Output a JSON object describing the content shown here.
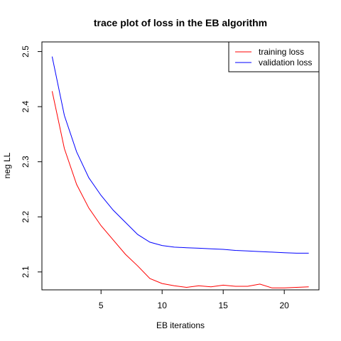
{
  "chart_data": {
    "type": "line",
    "title": "trace plot of loss in the EB algorithm",
    "xlabel": "EB iterations",
    "ylabel": "neg LL",
    "xlim": [
      0.16,
      22.84
    ],
    "ylim": [
      2.0675,
      2.5175
    ],
    "xticks": [
      "5",
      "10",
      "15",
      "20"
    ],
    "yticks": [
      "2.1",
      "2.2",
      "2.3",
      "2.4",
      "2.5"
    ],
    "grid": false,
    "legend_position": "top-right",
    "x": [
      1,
      2,
      3,
      4,
      5,
      6,
      7,
      8,
      9,
      10,
      11,
      12,
      13,
      14,
      15,
      16,
      17,
      18,
      19,
      20,
      21,
      22
    ],
    "series": [
      {
        "name": "training loss",
        "color": "#ff0000",
        "values": [
          2.428,
          2.324,
          2.259,
          2.216,
          2.184,
          2.158,
          2.132,
          2.111,
          2.088,
          2.079,
          2.075,
          2.072,
          2.075,
          2.073,
          2.076,
          2.074,
          2.074,
          2.078,
          2.071,
          2.071,
          2.072,
          2.073
        ]
      },
      {
        "name": "validation loss",
        "color": "#0000ff",
        "values": [
          2.491,
          2.384,
          2.318,
          2.271,
          2.239,
          2.212,
          2.19,
          2.168,
          2.154,
          2.148,
          2.145,
          2.144,
          2.143,
          2.142,
          2.141,
          2.139,
          2.138,
          2.137,
          2.136,
          2.135,
          2.134,
          2.134
        ]
      }
    ]
  }
}
